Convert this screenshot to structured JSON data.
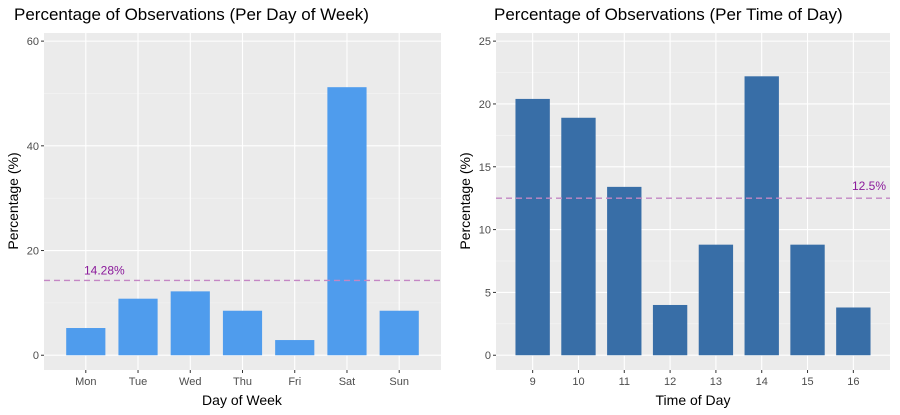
{
  "chart_data": [
    {
      "type": "bar",
      "title": "Percentage of Observations (Per Day of Week)",
      "xlabel": "Day of Week",
      "ylabel": "Percentage (%)",
      "categories": [
        "Mon",
        "Tue",
        "Wed",
        "Thu",
        "Fri",
        "Sat",
        "Sun"
      ],
      "values": [
        5.2,
        10.8,
        12.2,
        8.5,
        2.9,
        51.2,
        8.5
      ],
      "ylim": [
        0,
        60
      ],
      "yticks": [
        0,
        20,
        40,
        60
      ],
      "bar_color": "#4f9ced",
      "reference_line": {
        "value": 14.28,
        "label": "14.28%",
        "color": "#c487c4"
      },
      "grid": true,
      "legend": "none"
    },
    {
      "type": "bar",
      "title": "Percentage of Observations (Per Time of Day)",
      "xlabel": "Time of Day",
      "ylabel": "Percentage (%)",
      "categories": [
        "9",
        "10",
        "11",
        "12",
        "13",
        "14",
        "15",
        "16"
      ],
      "values": [
        20.4,
        18.9,
        13.4,
        4.0,
        8.8,
        22.2,
        8.8,
        3.8
      ],
      "ylim": [
        0,
        25
      ],
      "yticks": [
        0,
        5,
        10,
        15,
        20,
        25
      ],
      "bar_color": "#386ea7",
      "reference_line": {
        "value": 12.5,
        "label": "12.5%",
        "color": "#c487c4"
      },
      "grid": true,
      "legend": "none"
    }
  ]
}
